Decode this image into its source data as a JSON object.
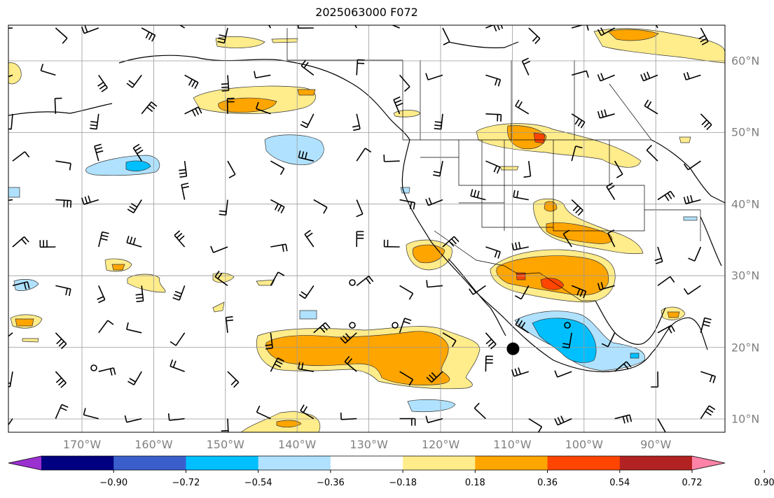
{
  "title": "2025063000 F072",
  "lon_labels": [
    {
      "text": "170°W",
      "lon": -170
    },
    {
      "text": "160°W",
      "lon": -160
    },
    {
      "text": "150°W",
      "lon": -150
    },
    {
      "text": "140°W",
      "lon": -140
    },
    {
      "text": "130°W",
      "lon": -130
    },
    {
      "text": "120°W",
      "lon": -120
    },
    {
      "text": "110°W",
      "lon": -110
    },
    {
      "text": "100°W",
      "lon": -100
    },
    {
      "text": "90°W",
      "lon": -90
    }
  ],
  "lat_labels": [
    {
      "text": "60°N",
      "lat": 60
    },
    {
      "text": "50°N",
      "lat": 50
    },
    {
      "text": "40°N",
      "lat": 40
    },
    {
      "text": "30°N",
      "lat": 30
    },
    {
      "text": "20°N",
      "lat": 20
    },
    {
      "text": "10°N",
      "lat": 10
    }
  ],
  "colorbar": {
    "levels": [
      "−0.90",
      "−0.72",
      "−0.54",
      "−0.36",
      "−0.18",
      "0.18",
      "0.36",
      "0.54",
      "0.72",
      "0.90"
    ],
    "colors": [
      "#9b30d0",
      "#000080",
      "#3a5fcd",
      "#00bfff",
      "#b0e2ff",
      "#ffffff",
      "#ffec8b",
      "#ffa500",
      "#ff4500",
      "#b22222",
      "#ff83a8"
    ]
  },
  "marker": {
    "label": "",
    "lon": -109.9,
    "lat": 19.8
  }
}
